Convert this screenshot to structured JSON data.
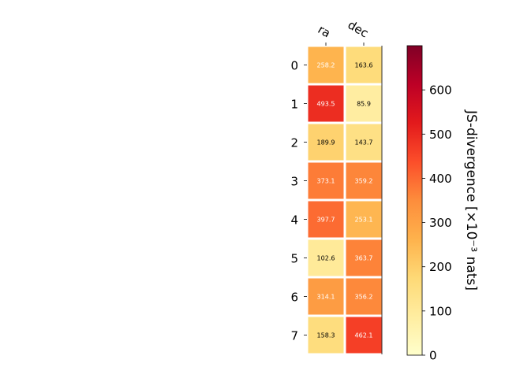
{
  "chart_data": {
    "type": "heatmap",
    "columns": [
      "ra",
      "dec"
    ],
    "rows": [
      "0",
      "1",
      "2",
      "3",
      "4",
      "5",
      "6",
      "7"
    ],
    "values": [
      [
        258.2,
        163.6
      ],
      [
        493.5,
        85.9
      ],
      [
        189.9,
        143.7
      ],
      [
        373.1,
        359.2
      ],
      [
        397.7,
        253.1
      ],
      [
        102.6,
        363.7
      ],
      [
        314.1,
        356.2
      ],
      [
        158.3,
        462.1
      ]
    ],
    "colorbar": {
      "label": "JS-divergence [×10⁻³ nats]",
      "range": [
        0,
        700
      ],
      "ticks": [
        0,
        100,
        200,
        300,
        400,
        500,
        600
      ],
      "colormap": "YlOrRd",
      "colormap_stops": [
        "#ffffcc",
        "#ffeda0",
        "#fed976",
        "#feb24c",
        "#fd8d3c",
        "#fc4e2a",
        "#e31a1c",
        "#bd0026",
        "#800026"
      ]
    },
    "cell_text_colors": {
      "light": "#ffffff",
      "dark": "#000000"
    }
  }
}
